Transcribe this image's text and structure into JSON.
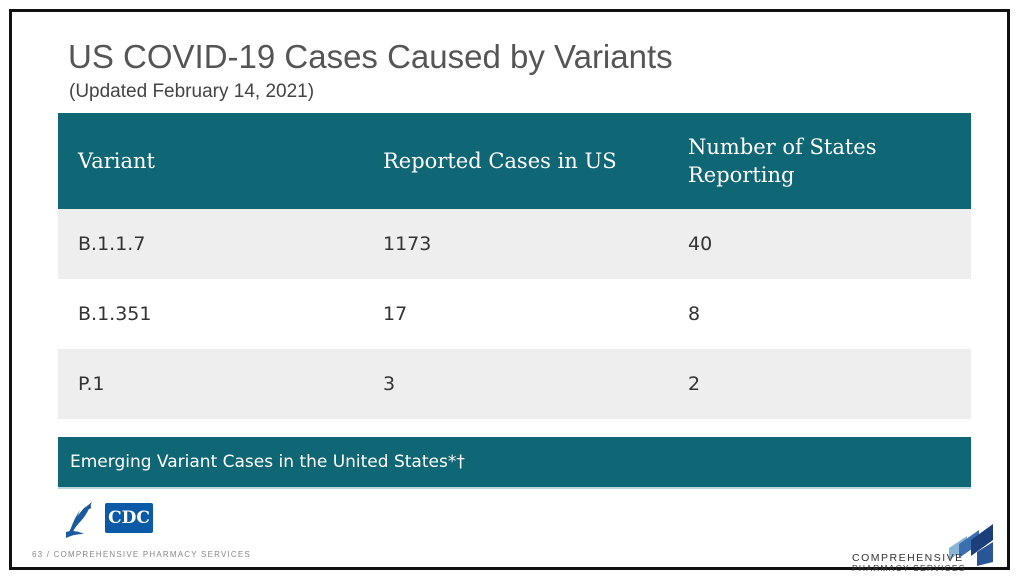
{
  "slide": {
    "title": "US COVID-19 Cases Caused by Variants",
    "subtitle": "(Updated February 14, 2021)"
  },
  "table": {
    "headers": [
      "Variant",
      "Reported Cases in US",
      "Number of States\nReporting"
    ],
    "rows": [
      [
        "B.1.1.7",
        "1173",
        "40"
      ],
      [
        "B.1.351",
        "17",
        "8"
      ],
      [
        "P.1",
        "3",
        "2"
      ]
    ]
  },
  "banner": {
    "text": "Emerging Variant Cases in the United States*†"
  },
  "footer": {
    "left_text": "63 / COMPREHENSIVE PHARMACY SERVICES",
    "cdc_logo_text": "CDC",
    "logo_line1": "COMPREHENSIVE",
    "logo_line2": "PHARMACY SERVICES"
  },
  "colors": {
    "header_teal": "#0f6675",
    "row_alt": "#eeeeee",
    "cdc_blue": "#0a5aa8"
  }
}
